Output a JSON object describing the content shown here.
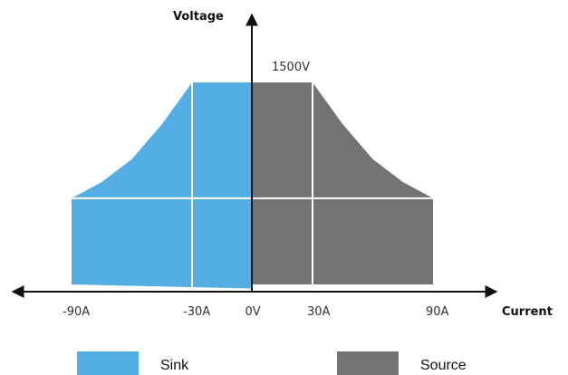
{
  "chart_data": {
    "type": "area",
    "title": "",
    "xlabel": "Current",
    "ylabel": "Voltage",
    "xlim": [
      -90,
      90
    ],
    "ylim": [
      0,
      1500
    ],
    "grid": true,
    "legend_position": "bottom",
    "x_ticks": [
      "-90A",
      "-30A",
      "0V",
      "30A",
      "90A"
    ],
    "y_annotation": "1500V",
    "series": [
      {
        "name": "Sink",
        "color": "#55aee3",
        "points": [
          {
            "x": -90,
            "y": 0
          },
          {
            "x": -90,
            "y": 640
          },
          {
            "x": -75,
            "y": 760
          },
          {
            "x": -60,
            "y": 930
          },
          {
            "x": -45,
            "y": 1190
          },
          {
            "x": -30,
            "y": 1500
          },
          {
            "x": 0,
            "y": 1500
          },
          {
            "x": 0,
            "y": -30
          }
        ]
      },
      {
        "name": "Source",
        "color": "#737373",
        "points": [
          {
            "x": 0,
            "y": 1500
          },
          {
            "x": 30,
            "y": 1500
          },
          {
            "x": 45,
            "y": 1190
          },
          {
            "x": 60,
            "y": 930
          },
          {
            "x": 75,
            "y": 760
          },
          {
            "x": 90,
            "y": 640
          },
          {
            "x": 90,
            "y": 0
          },
          {
            "x": 0,
            "y": 0
          }
        ]
      }
    ],
    "gridlines": {
      "x": [
        -30,
        30
      ],
      "y": [
        640
      ]
    }
  },
  "legend": [
    {
      "label": "Sink",
      "color": "#55aee3"
    },
    {
      "label": "Source",
      "color": "#737373"
    }
  ]
}
